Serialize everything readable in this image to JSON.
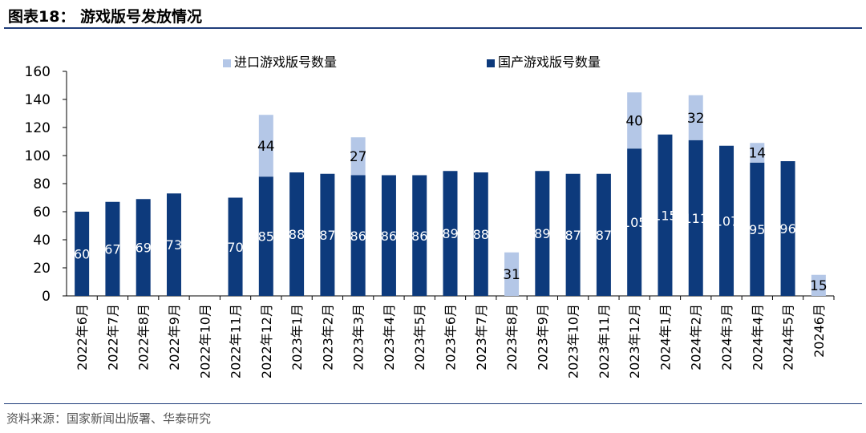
{
  "header": {
    "title": "图表18：  游戏版号发放情况"
  },
  "footer": {
    "source": "资料来源：国家新闻出版署、华泰研究"
  },
  "colors": {
    "domestic": "#0d3a7c",
    "imported": "#b4c7e7",
    "axis": "#000000"
  },
  "chart_data": {
    "type": "bar",
    "stacked": true,
    "title": "",
    "xlabel": "",
    "ylabel": "",
    "ylim": [
      0,
      160
    ],
    "yticks": [
      0,
      20,
      40,
      60,
      80,
      100,
      120,
      140,
      160
    ],
    "legend_position": "top-center",
    "grid": false,
    "categories": [
      "2022年6月",
      "2022年7月",
      "2022年8月",
      "2022年9月",
      "2022年10月",
      "2022年11月",
      "2022年12月",
      "2023年1月",
      "2023年2月",
      "2023年3月",
      "2023年4月",
      "2023年5月",
      "2023年6月",
      "2023年7月",
      "2023年8月",
      "2023年9月",
      "2023年10月",
      "2023年11月",
      "2023年12月",
      "2024年1月",
      "2024年2月",
      "2024年3月",
      "2024年4月",
      "2024年5月",
      "20246月"
    ],
    "series": [
      {
        "name": "国产游戏版号数量",
        "color": "#0d3a7c",
        "values": [
          60,
          67,
          69,
          73,
          0,
          70,
          85,
          88,
          87,
          86,
          86,
          86,
          89,
          88,
          0,
          89,
          87,
          87,
          105,
          115,
          111,
          107,
          95,
          96,
          0
        ]
      },
      {
        "name": "进口游戏版号数量",
        "color": "#b4c7e7",
        "values": [
          0,
          0,
          0,
          0,
          0,
          0,
          44,
          0,
          0,
          27,
          0,
          0,
          0,
          0,
          31,
          0,
          0,
          0,
          40,
          0,
          32,
          0,
          14,
          0,
          15
        ]
      }
    ],
    "data_labels": {
      "domestic": [
        "60",
        "67",
        "69",
        "73",
        "",
        "70",
        "85",
        "88",
        "87",
        "86",
        "86",
        "86",
        "89",
        "88",
        "",
        "89",
        "87",
        "87",
        "105",
        "115",
        "111",
        "107",
        "95",
        "96",
        ""
      ],
      "imported": [
        "",
        "",
        "",
        "",
        "",
        "",
        "44",
        "",
        "",
        "27",
        "",
        "",
        "",
        "",
        "31",
        "",
        "",
        "",
        "40",
        "",
        "32",
        "",
        "14",
        "",
        "15"
      ]
    }
  }
}
